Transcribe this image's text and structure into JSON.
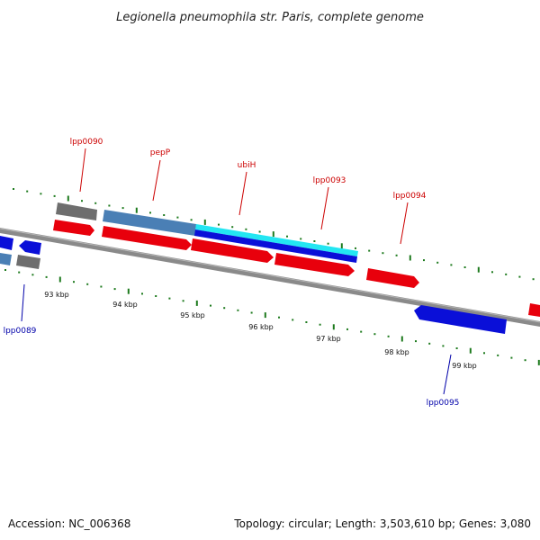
{
  "title": "Legionella pneumophila str. Paris, complete genome",
  "footer": {
    "accession": "Accession: NC_006368",
    "topology": "Topology: circular; Length: 3,503,610 bp; Genes: 3,080"
  },
  "colors": {
    "forward_gene": "#e8000c",
    "reverse_gene": "#0a0fd8",
    "rna_gene": "#6e6e6e",
    "forward_highlight": "#4a7fb5",
    "reverse_highlight": "#23e6f2",
    "tick_dots": "#1d7a1d",
    "backbone": "#888888",
    "forward_label": "#cc0000",
    "reverse_label": "#0000aa"
  },
  "scale_labels": [
    "93 kbp",
    "94 kbp",
    "95 kbp",
    "96 kbp",
    "97 kbp",
    "98 kbp",
    "99 kbp"
  ],
  "genes": [
    {
      "label": "lpp0089",
      "strand": "reverse"
    },
    {
      "label": "lpp0090",
      "strand": "forward"
    },
    {
      "label": "pepP",
      "strand": "forward"
    },
    {
      "label": "ubiH",
      "strand": "forward"
    },
    {
      "label": "lpp0093",
      "strand": "forward"
    },
    {
      "label": "lpp0094",
      "strand": "forward"
    },
    {
      "label": "lpp0095",
      "strand": "reverse"
    }
  ]
}
